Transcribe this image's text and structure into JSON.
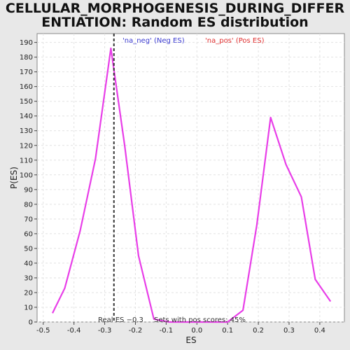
{
  "chart_data": {
    "type": "line",
    "title": "CELLULAR_MORPHOGENESIS_DURING_DIFFERENTIATION: Random ES distribution",
    "xlabel": "ES",
    "ylabel": "P(ES)",
    "xlim": [
      -0.52,
      0.48
    ],
    "ylim": [
      0,
      196
    ],
    "xticks": [
      -0.5,
      -0.4,
      -0.3,
      -0.2,
      -0.1,
      0.0,
      0.1,
      0.2,
      0.3,
      0.4
    ],
    "xtick_labels": [
      "-0.5",
      "-0.4",
      "-0.3",
      "-0.2",
      "-0.1",
      "0.0",
      "0.1",
      "0.2",
      "0.3",
      "0.4"
    ],
    "yticks": [
      0,
      10,
      20,
      30,
      40,
      50,
      60,
      70,
      80,
      90,
      100,
      110,
      120,
      130,
      140,
      150,
      160,
      170,
      180,
      190
    ],
    "grid": true,
    "legend": [
      {
        "label": "'na_neg' (Neg ES)",
        "color": "#3a3ad0"
      },
      {
        "label": "'na_pos' (Pos ES)",
        "color": "#e03030"
      }
    ],
    "series": [
      {
        "color": "#e83ee8",
        "points": [
          [
            -0.47,
            6
          ],
          [
            -0.43,
            23
          ],
          [
            -0.38,
            62
          ],
          [
            -0.33,
            111
          ],
          [
            -0.28,
            186
          ],
          [
            -0.235,
            120
          ],
          [
            -0.19,
            45
          ],
          [
            -0.14,
            2
          ],
          [
            -0.09,
            0
          ],
          [
            -0.04,
            0
          ],
          [
            0.0,
            0
          ],
          [
            0.05,
            0
          ],
          [
            0.1,
            0
          ],
          [
            0.15,
            8
          ],
          [
            0.195,
            66
          ],
          [
            0.24,
            139
          ],
          [
            0.29,
            107
          ],
          [
            0.34,
            85
          ],
          [
            0.385,
            29
          ],
          [
            0.435,
            14
          ]
        ]
      }
    ],
    "real_es": -0.27,
    "real_es_label": "Real ES −0.3",
    "annotation": "Sets with pos scores: 45%"
  }
}
